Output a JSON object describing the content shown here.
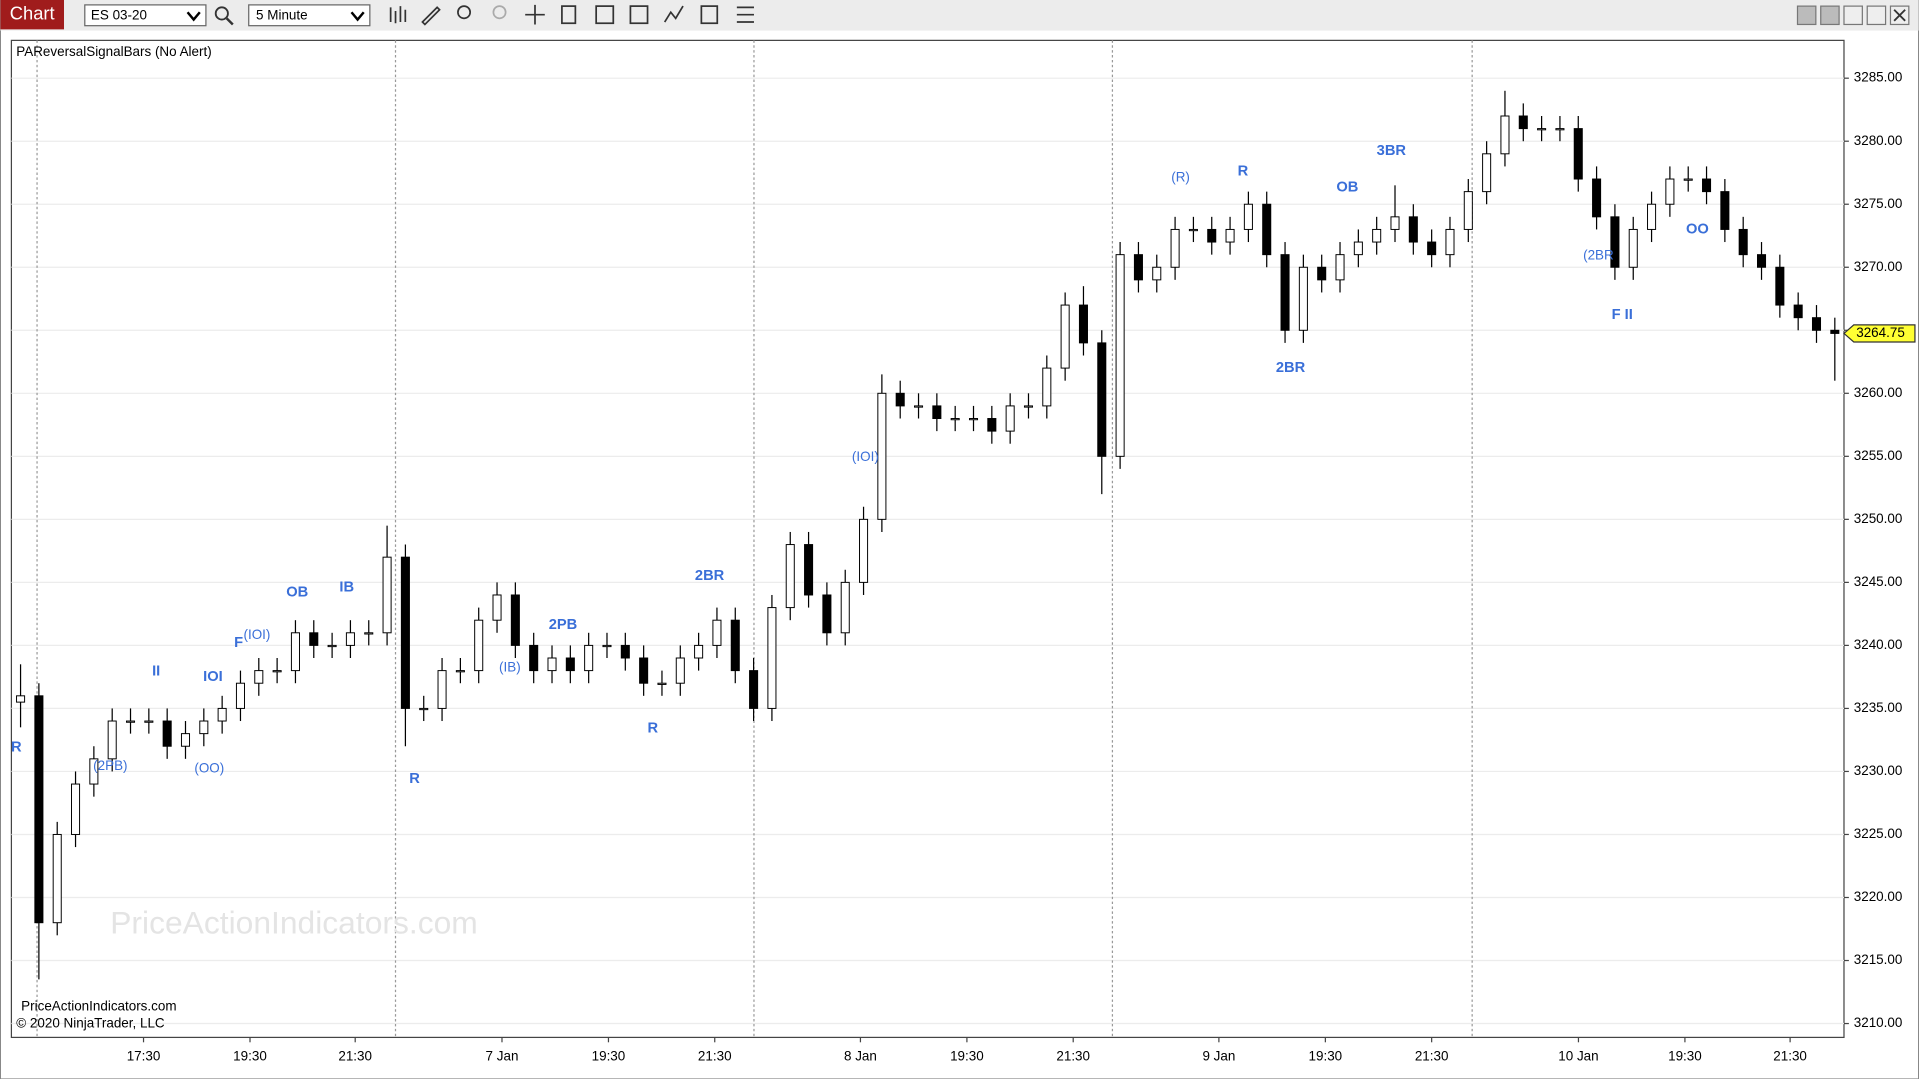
{
  "toolbar": {
    "tab": "Chart",
    "instrument": "ES 03-20",
    "interval": "5 Minute"
  },
  "chart_data": {
    "type": "candlestick",
    "title": "PAReversalSignalBars (No Alert)",
    "watermark": "PriceActionIndicators.com",
    "credits": [
      "PriceActionIndicators.com",
      "© 2020 NinjaTrader, LLC"
    ],
    "up_color": "#ffffff",
    "down_color": "#000000",
    "wick_color": "#000000",
    "annotation_color": "#3a6fd8",
    "grid": true,
    "xlim": [
      0,
      100
    ],
    "ylim": [
      3208.9,
      3288.0
    ],
    "yticks": [
      {
        "value": 3210,
        "label": "3210.00"
      },
      {
        "value": 3215,
        "label": "3215.00"
      },
      {
        "value": 3220,
        "label": "3220.00"
      },
      {
        "value": 3225,
        "label": "3225.00"
      },
      {
        "value": 3230,
        "label": "3230.00"
      },
      {
        "value": 3235,
        "label": "3235.00"
      },
      {
        "value": 3240,
        "label": "3240.00"
      },
      {
        "value": 3245,
        "label": "3245.00"
      },
      {
        "value": 3250,
        "label": "3250.00"
      },
      {
        "value": 3255,
        "label": "3255.00"
      },
      {
        "value": 3260,
        "label": "3260.00"
      },
      {
        "value": 3265,
        "label": "3265.00"
      },
      {
        "value": 3270,
        "label": "3270.00"
      },
      {
        "value": 3275,
        "label": "3275.00"
      },
      {
        "value": 3280,
        "label": "3280.00"
      },
      {
        "value": 3285,
        "label": "3285.00"
      }
    ],
    "xticks": [
      {
        "value": 7.21,
        "label": "17:30"
      },
      {
        "value": 13.02,
        "label": "19:30"
      },
      {
        "value": 18.76,
        "label": "21:30"
      },
      {
        "value": 26.77,
        "label": "7 Jan"
      },
      {
        "value": 32.58,
        "label": "19:30"
      },
      {
        "value": 38.38,
        "label": "21:30"
      },
      {
        "value": 46.33,
        "label": "8 Jan"
      },
      {
        "value": 52.14,
        "label": "19:30"
      },
      {
        "value": 57.94,
        "label": "21:30"
      },
      {
        "value": 65.89,
        "label": "9 Jan"
      },
      {
        "value": 71.7,
        "label": "19:30"
      },
      {
        "value": 77.5,
        "label": "21:30"
      },
      {
        "value": 85.51,
        "label": "10 Jan"
      },
      {
        "value": 91.32,
        "label": "19:30"
      },
      {
        "value": 97.06,
        "label": "21:30"
      }
    ],
    "session_breaks": [
      1.4,
      20.96,
      40.52,
      60.08,
      79.71
    ],
    "open": [
      3235.5,
      3236,
      3218,
      3225,
      3229,
      3231,
      3234,
      3234,
      3234,
      3232,
      3233,
      3234,
      3235,
      3237,
      3238,
      3238,
      3241,
      3240,
      3240,
      3241,
      3241,
      3247,
      3235,
      3235,
      3238,
      3238,
      3242,
      3244,
      3240,
      3238,
      3239,
      3238,
      3240,
      3240,
      3239,
      3237,
      3237,
      3239,
      3240,
      3242,
      3238,
      3235,
      3243,
      3248,
      3244,
      3241,
      3245,
      3250,
      3260,
      3259,
      3259,
      3258,
      3258,
      3258,
      3257,
      3259,
      3259,
      3262,
      3267,
      3264,
      3255,
      3271,
      3269,
      3270,
      3273,
      3273,
      3272,
      3273,
      3275,
      3271,
      3265,
      3270,
      3269,
      3271,
      3272,
      3273,
      3274,
      3272,
      3271,
      3273,
      3276,
      3279,
      3282,
      3281,
      3281,
      3281,
      3277,
      3274,
      3270,
      3273,
      3275,
      3277,
      3277,
      3276,
      3273,
      3271,
      3270,
      3267,
      3266,
      3265
    ],
    "high": [
      3238.5,
      3237,
      3226,
      3230,
      3232,
      3235,
      3235,
      3235,
      3235,
      3234,
      3235,
      3236,
      3238,
      3239,
      3239,
      3242,
      3242,
      3241,
      3242,
      3242,
      3249.5,
      3248,
      3236,
      3239,
      3239,
      3243,
      3245,
      3245,
      3241,
      3240,
      3240,
      3241,
      3241,
      3241,
      3240,
      3238,
      3240,
      3241,
      3243,
      3243,
      3239,
      3244,
      3249,
      3249,
      3245,
      3246,
      3251,
      3261.5,
      3261,
      3260,
      3260,
      3259,
      3259,
      3259,
      3260,
      3260,
      3263,
      3268,
      3268.5,
      3265,
      3272,
      3272,
      3271,
      3274,
      3274,
      3274,
      3274,
      3276,
      3276,
      3272,
      3271,
      3271,
      3272,
      3273,
      3274,
      3276.5,
      3275,
      3273,
      3274,
      3277,
      3280,
      3284,
      3283,
      3282,
      3282,
      3282,
      3278,
      3275,
      3274,
      3276,
      3278,
      3278,
      3278,
      3277,
      3274,
      3272,
      3271,
      3268,
      3267,
      3266
    ],
    "low": [
      3233.5,
      3213.5,
      3217,
      3224,
      3228,
      3230,
      3233,
      3233,
      3231,
      3231,
      3232,
      3233,
      3234,
      3236,
      3237,
      3237,
      3239,
      3239,
      3239,
      3240,
      3240,
      3232,
      3234,
      3234,
      3237,
      3237,
      3241,
      3239,
      3237,
      3237,
      3237,
      3237,
      3239,
      3238,
      3236,
      3236,
      3236,
      3238,
      3239,
      3237,
      3234,
      3234,
      3242,
      3243,
      3240,
      3240,
      3244,
      3249,
      3258,
      3258,
      3257,
      3257,
      3257,
      3256,
      3256,
      3258,
      3258,
      3261,
      3263,
      3252,
      3254,
      3268,
      3268,
      3269,
      3272,
      3271,
      3271,
      3272,
      3270,
      3264,
      3264,
      3268,
      3268,
      3270,
      3271,
      3272,
      3271,
      3270,
      3270,
      3272,
      3275,
      3278,
      3280,
      3280,
      3280,
      3276,
      3273,
      3269,
      3269,
      3272,
      3274,
      3276,
      3275,
      3272,
      3270,
      3269,
      3266,
      3265,
      3264,
      3261
    ],
    "close": [
      3236,
      3218,
      3225,
      3229,
      3231,
      3234,
      3234,
      3234,
      3232,
      3233,
      3234,
      3235,
      3237,
      3238,
      3238,
      3241,
      3240,
      3240,
      3241,
      3241,
      3247,
      3235,
      3235,
      3238,
      3238,
      3242,
      3244,
      3240,
      3238,
      3239,
      3238,
      3240,
      3240,
      3239,
      3237,
      3237,
      3239,
      3240,
      3242,
      3238,
      3235,
      3243,
      3248,
      3244,
      3241,
      3245,
      3250,
      3260,
      3259,
      3259,
      3258,
      3258,
      3258,
      3257,
      3259,
      3259,
      3262,
      3267,
      3264,
      3255,
      3271,
      3269,
      3270,
      3273,
      3273,
      3272,
      3273,
      3275,
      3271,
      3265,
      3270,
      3269,
      3271,
      3272,
      3273,
      3274,
      3272,
      3271,
      3273,
      3276,
      3279,
      3282,
      3281,
      3281,
      3281,
      3277,
      3274,
      3270,
      3273,
      3275,
      3277,
      3277,
      3276,
      3273,
      3271,
      3270,
      3267,
      3266,
      3265,
      3264.75
    ],
    "last_price": 3264.75,
    "annotations": [
      {
        "text": "R",
        "x": 0.27,
        "y": 3231.9
      },
      {
        "text": "(2PB)",
        "x": 5.4,
        "y": 3230.4
      },
      {
        "text": "(OO)",
        "x": 10.8,
        "y": 3230.2
      },
      {
        "text": "II",
        "x": 7.9,
        "y": 3237.9
      },
      {
        "text": "IOI",
        "x": 11.0,
        "y": 3237.5
      },
      {
        "text": "F",
        "x": 12.4,
        "y": 3240.2
      },
      {
        "text": "(IOI)",
        "x": 13.4,
        "y": 3240.8
      },
      {
        "text": "OB",
        "x": 15.6,
        "y": 3244.2
      },
      {
        "text": "IB",
        "x": 18.3,
        "y": 3244.6
      },
      {
        "text": "R",
        "x": 22.0,
        "y": 3229.4
      },
      {
        "text": "(IB)",
        "x": 27.2,
        "y": 3238.2
      },
      {
        "text": "2PB",
        "x": 30.1,
        "y": 3241.6
      },
      {
        "text": "R",
        "x": 35.0,
        "y": 3233.4
      },
      {
        "text": "2BR",
        "x": 38.1,
        "y": 3245.5
      },
      {
        "text": "(IOI)",
        "x": 46.6,
        "y": 3254.9
      },
      {
        "text": "(R)",
        "x": 63.8,
        "y": 3277.1
      },
      {
        "text": "R",
        "x": 67.2,
        "y": 3277.6
      },
      {
        "text": "OB",
        "x": 72.9,
        "y": 3276.3
      },
      {
        "text": "3BR",
        "x": 75.3,
        "y": 3279.2
      },
      {
        "text": "2BR",
        "x": 69.8,
        "y": 3262.0
      },
      {
        "text": "(2BR",
        "x": 86.6,
        "y": 3270.9
      },
      {
        "text": "F II",
        "x": 87.9,
        "y": 3266.2
      },
      {
        "text": "OO",
        "x": 92.0,
        "y": 3273.0
      }
    ]
  }
}
